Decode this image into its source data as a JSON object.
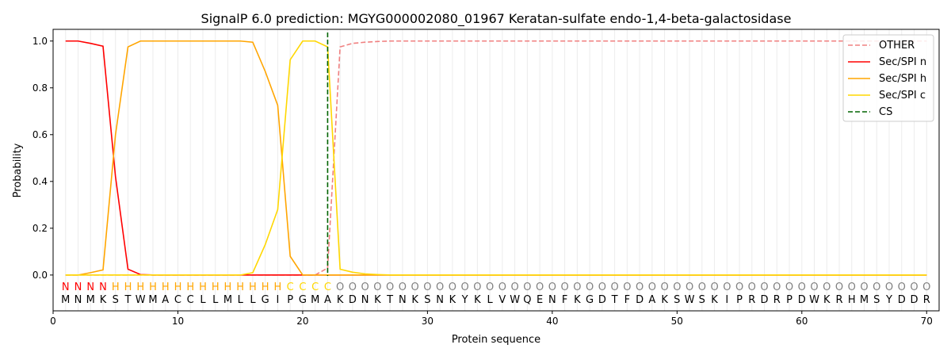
{
  "chart_data": {
    "type": "line",
    "title": "SignalP 6.0 prediction: MGYG000002080_01967 Keratan-sulfate endo-1,4-beta-galactosidase",
    "xlabel": "Protein sequence",
    "ylabel": "Probability",
    "xlim": [
      0,
      71
    ],
    "ylim": [
      -0.153,
      1.05
    ],
    "xticks": [
      0,
      10,
      20,
      30,
      40,
      50,
      60,
      70
    ],
    "yticks": [
      0.0,
      0.2,
      0.4,
      0.6,
      0.8,
      1.0
    ],
    "grid": "vertical lines at each residue",
    "legend_placement": "top-right",
    "sequence": "MNMKSTWMACCLLMLLGIPGMAKDNKTNKSNKYKLVWQENFKGDTFDAKSWSKIPRDRPDWKRHMSYDDR",
    "labels": "NNNNHHHHHHHHHHHHHHCCCCOOOOOOOOOOOOOOOOOOOOOOOOOOOOOOOOOOOOOOOOOOOOOOOO",
    "label_colors": {
      "N": "#ff0000",
      "H": "#ffa500",
      "C": "#ffd700",
      "O": "#808080"
    },
    "cleavage_site": 22,
    "series": [
      {
        "name": "OTHER",
        "color": "#f08080",
        "dash": true,
        "points": [
          [
            1,
            0
          ],
          [
            21,
            0
          ],
          [
            22,
            0.03
          ],
          [
            23,
            0.975
          ],
          [
            24,
            0.99
          ],
          [
            25,
            0.995
          ],
          [
            26,
            0.998
          ],
          [
            27,
            1
          ],
          [
            70,
            1
          ]
        ]
      },
      {
        "name": "Sec/SPI n",
        "color": "#ff0000",
        "dash": false,
        "points": [
          [
            1,
            1
          ],
          [
            2,
            1
          ],
          [
            3,
            0.99
          ],
          [
            4,
            0.978
          ],
          [
            5,
            0.42
          ],
          [
            6,
            0.025
          ],
          [
            7,
            0.002
          ],
          [
            8,
            0
          ],
          [
            70,
            0
          ]
        ]
      },
      {
        "name": "Sec/SPI h",
        "color": "#ffa500",
        "dash": false,
        "points": [
          [
            1,
            0
          ],
          [
            2,
            0
          ],
          [
            3,
            0.01
          ],
          [
            4,
            0.022
          ],
          [
            5,
            0.6
          ],
          [
            6,
            0.975
          ],
          [
            7,
            1
          ],
          [
            15,
            1
          ],
          [
            16,
            0.995
          ],
          [
            17,
            0.87
          ],
          [
            18,
            0.725
          ],
          [
            19,
            0.08
          ],
          [
            20,
            0
          ],
          [
            70,
            0
          ]
        ]
      },
      {
        "name": "Sec/SPI c",
        "color": "#ffd700",
        "dash": false,
        "points": [
          [
            1,
            0
          ],
          [
            15,
            0
          ],
          [
            16,
            0.01
          ],
          [
            17,
            0.13
          ],
          [
            18,
            0.28
          ],
          [
            19,
            0.92
          ],
          [
            20,
            1
          ],
          [
            21,
            1
          ],
          [
            22,
            0.975
          ],
          [
            23,
            0.025
          ],
          [
            24,
            0.012
          ],
          [
            25,
            0.005
          ],
          [
            26,
            0.002
          ],
          [
            27,
            0
          ],
          [
            70,
            0
          ]
        ]
      }
    ],
    "cs_legend": "CS",
    "cs_color": "#006400"
  }
}
